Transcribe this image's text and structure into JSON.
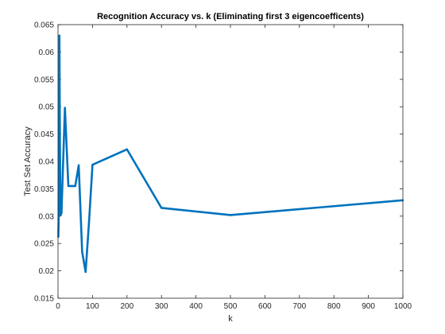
{
  "chart_data": {
    "type": "line",
    "title": "Recognition Accuracy vs. k (Eliminating first 3 eigencoefficents)",
    "xlabel": "k",
    "ylabel": "Test Set Accuracy",
    "xlim": [
      0,
      1000
    ],
    "ylim": [
      0.015,
      0.065
    ],
    "xticks": [
      0,
      100,
      200,
      300,
      400,
      500,
      600,
      700,
      800,
      900,
      1000
    ],
    "yticks": [
      0.015,
      0.02,
      0.025,
      0.03,
      0.035,
      0.04,
      0.045,
      0.05,
      0.055,
      0.06,
      0.065
    ],
    "xtick_labels": [
      "0",
      "100",
      "200",
      "300",
      "400",
      "500",
      "600",
      "700",
      "800",
      "900",
      "1000"
    ],
    "ytick_labels": [
      "0.015",
      "0.02",
      "0.025",
      "0.03",
      "0.035",
      "0.04",
      "0.045",
      "0.05",
      "0.055",
      "0.06",
      "0.065"
    ],
    "grid": false,
    "line_color": "#0072BD",
    "series": [
      {
        "x": [
          1,
          2,
          3,
          4,
          5,
          6,
          7,
          8,
          9,
          10,
          20,
          30,
          40,
          50,
          60,
          70,
          80,
          90,
          100,
          200,
          300,
          500,
          1000
        ],
        "values": [
          0.0262,
          0.03,
          0.044,
          0.063,
          0.05,
          0.039,
          0.0302,
          0.0302,
          0.0307,
          0.0305,
          0.0498,
          0.0355,
          0.0355,
          0.0355,
          0.0393,
          0.0235,
          0.0198,
          0.029,
          0.0394,
          0.0422,
          0.0315,
          0.0302,
          0.0329
        ]
      }
    ]
  }
}
